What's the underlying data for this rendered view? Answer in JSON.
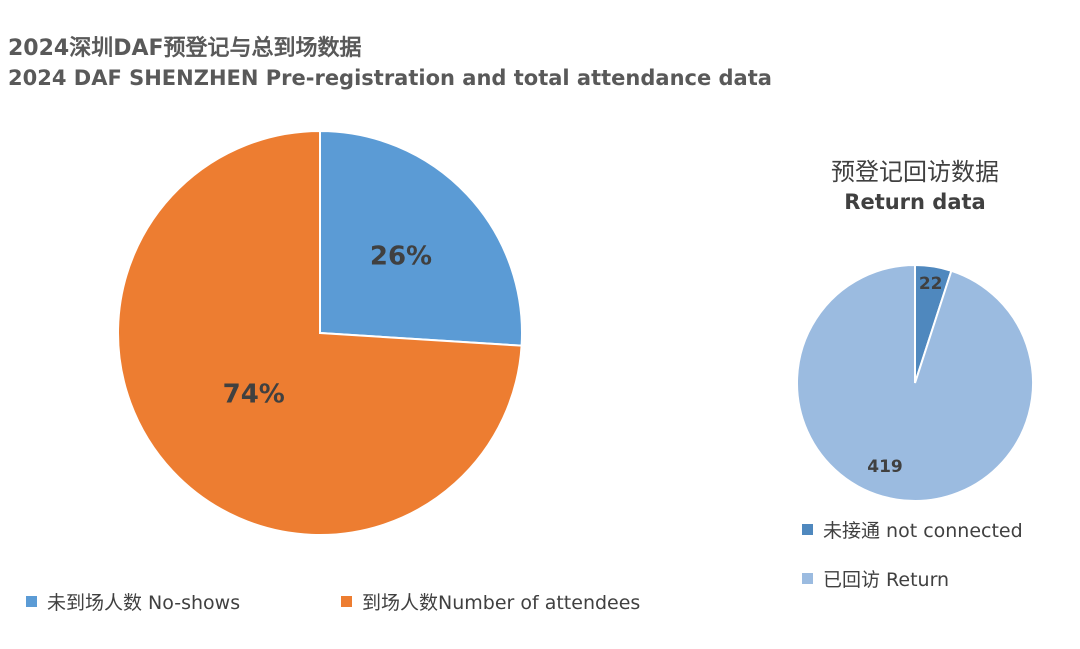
{
  "title_cn": "2024深圳DAF预登记与总到场数据",
  "title_en": "2024 DAF SHENZHEN Pre-registration and total attendance data",
  "chart_data": [
    {
      "type": "pie",
      "slices": [
        {
          "name": "未到场人数 No-shows",
          "value": 26,
          "label": "26%",
          "color": "#5B9BD5"
        },
        {
          "name": "到场人数Number of attendees",
          "value": 74,
          "label": "74%",
          "color": "#ED7D31"
        }
      ],
      "legend": "bottom"
    },
    {
      "type": "pie",
      "title_cn": "预登记回访数据",
      "title_en": "Return data",
      "slices": [
        {
          "name": "未接通 not connected",
          "value": 22,
          "label": "22",
          "color": "#4F88BE"
        },
        {
          "name": "已回访 Return",
          "value": 419,
          "label": "419",
          "color": "#9BBBE0"
        }
      ],
      "legend": "bottom"
    }
  ]
}
